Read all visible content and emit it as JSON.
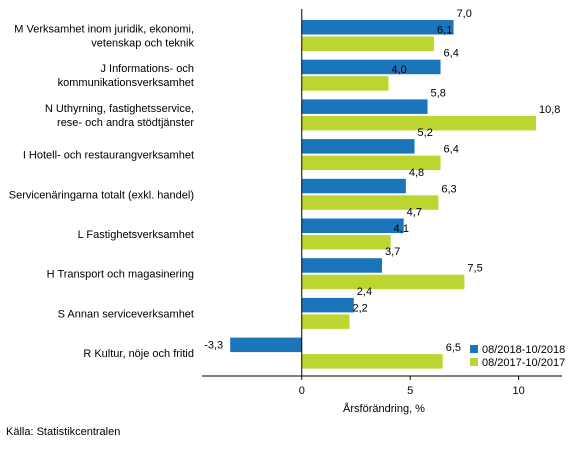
{
  "chart_data": {
    "type": "bar",
    "orientation": "horizontal",
    "categories": [
      [
        "M Verksamhet inom juridik, ekonomi,",
        "vetenskap och teknik"
      ],
      [
        "J Informations- och",
        "kommunikationsverksamhet"
      ],
      [
        "N Uthyrning, fastighetsservice,",
        "rese- och andra stödtjänster"
      ],
      [
        "I Hotell- och restaurangverksamhet"
      ],
      [
        "Servicenäringarna totalt (exkl. handel)"
      ],
      [
        "L Fastighetsverksamhet"
      ],
      [
        "H Transport och magasinering"
      ],
      [
        "S Annan serviceverksamhet"
      ],
      [
        "R Kultur, nöje och fritid"
      ]
    ],
    "series": [
      {
        "name": "08/2018-10/2018",
        "color": "#1b75bb",
        "values": [
          7.0,
          6.4,
          5.8,
          5.2,
          4.8,
          4.7,
          3.7,
          2.4,
          -3.3
        ],
        "labels": [
          "7,0",
          "6,4",
          "5,8",
          "5,2",
          "4,8",
          "4,7",
          "3,7",
          "2,4",
          "-3,3"
        ]
      },
      {
        "name": "08/2017-10/2017",
        "color": "#bdd531",
        "values": [
          6.1,
          4.0,
          10.8,
          6.4,
          6.3,
          4.1,
          7.5,
          2.2,
          6.5
        ],
        "labels": [
          "6,1",
          "4,0",
          "10,8",
          "6,4",
          "6,3",
          "4,1",
          "7,5",
          "2,2",
          "6,5"
        ]
      }
    ],
    "xlim": [
      -4.6,
      12
    ],
    "xticks": [
      0,
      5,
      10
    ],
    "xtick_labels": [
      "0",
      "5",
      "10"
    ],
    "xlabel": "Årsförändring, %",
    "legend_position": "bottom-right",
    "grid": false
  },
  "source": "Källa: Statistikcentralen"
}
